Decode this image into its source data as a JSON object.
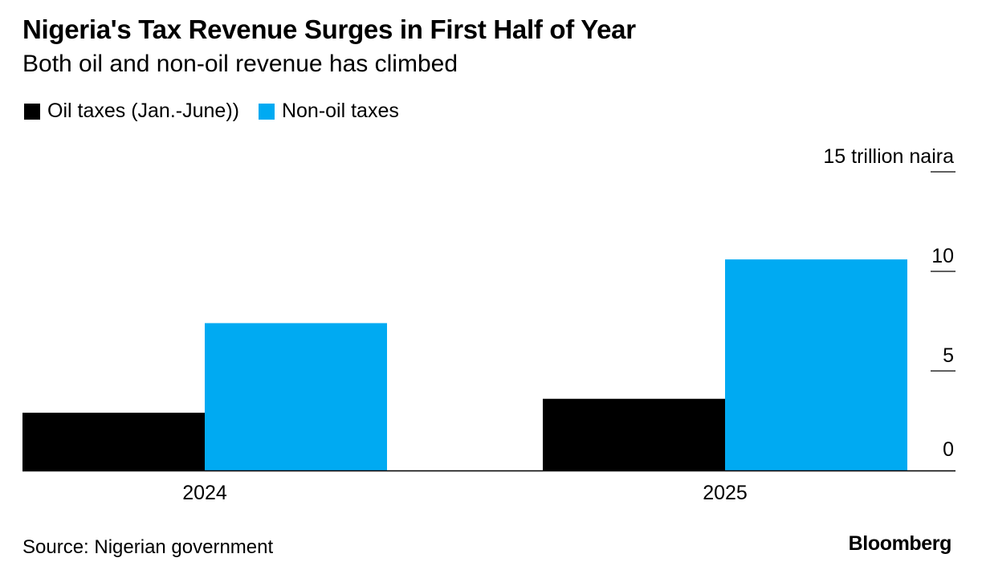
{
  "chart_data": {
    "type": "bar",
    "title": "Nigeria's Tax Revenue Surges in First Half of Year",
    "subtitle": "Both oil and non-oil revenue has climbed",
    "categories": [
      "2024",
      "2025"
    ],
    "series": [
      {
        "name": "Oil taxes (Jan.-June))",
        "values": [
          2.9,
          3.6
        ],
        "color": "#000000"
      },
      {
        "name": "Non-oil taxes",
        "values": [
          7.4,
          10.6
        ],
        "color": "#00aaf2"
      }
    ],
    "ylim": [
      0,
      15
    ],
    "y_ticks": [
      0,
      5,
      10,
      15
    ],
    "y_tick_labels": [
      "0",
      "5",
      "10",
      "15 trillion naira"
    ],
    "y_axis_side": "right",
    "legend_position": "top-left",
    "grid": false,
    "xlabel": "",
    "ylabel": ""
  },
  "footer": {
    "source": "Source: Nigerian government",
    "brand": "Bloomberg"
  }
}
